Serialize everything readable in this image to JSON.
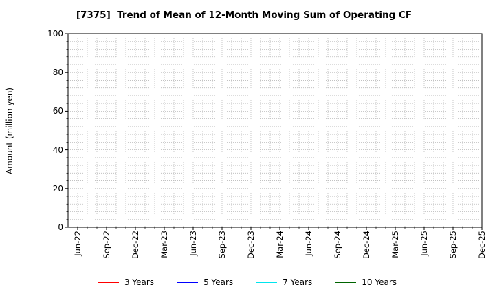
{
  "chart_data": {
    "type": "line",
    "title": "[7375]  Trend of Mean of 12-Month Moving Sum of Operating CF",
    "ylabel": "Amount (million yen)",
    "ylim": [
      0,
      100
    ],
    "yticks": [
      0,
      20,
      40,
      60,
      80,
      100
    ],
    "y_minor_step": 4,
    "x_tick_labels": [
      "Jun-22",
      "Sep-22",
      "Dec-22",
      "Mar-23",
      "Jun-23",
      "Sep-23",
      "Dec-23",
      "Mar-24",
      "Jun-24",
      "Sep-24",
      "Dec-24",
      "Mar-25",
      "Jun-25",
      "Sep-25",
      "Dec-25"
    ],
    "x_tick_month_indices": [
      1,
      4,
      7,
      10,
      13,
      16,
      19,
      22,
      25,
      28,
      31,
      34,
      37,
      40,
      43
    ],
    "x_months_total": 43,
    "grid": true,
    "grid_style": "dotted",
    "legend_position": "bottom-center",
    "series": [
      {
        "name": "3 Years",
        "color": "#ff0000",
        "values": []
      },
      {
        "name": "5 Years",
        "color": "#0000ff",
        "values": []
      },
      {
        "name": "7 Years",
        "color": "#00e5ee",
        "values": []
      },
      {
        "name": "10 Years",
        "color": "#006400",
        "values": []
      }
    ]
  }
}
